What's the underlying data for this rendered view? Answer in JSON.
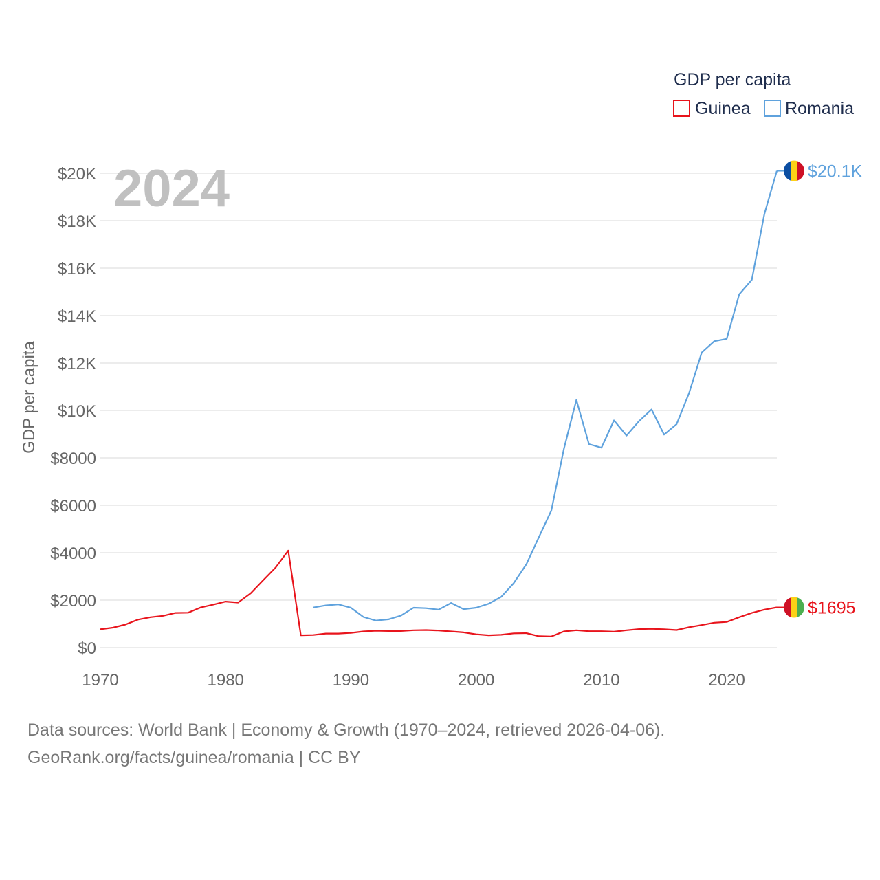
{
  "chart_data": {
    "type": "line",
    "title": "",
    "year_label": "2024",
    "ylabel": "GDP per capita",
    "xlabel": "",
    "xlim": [
      1970,
      2024
    ],
    "ylim": [
      0,
      20000
    ],
    "x_ticks": [
      1970,
      1980,
      1990,
      2000,
      2010,
      2020
    ],
    "x_tick_labels": [
      "1970",
      "1980",
      "1990",
      "2000",
      "2010",
      "2020"
    ],
    "y_ticks": [
      0,
      2000,
      4000,
      6000,
      8000,
      10000,
      12000,
      14000,
      16000,
      18000,
      20000
    ],
    "y_tick_labels": [
      "$0",
      "$2000",
      "$4000",
      "$6000",
      "$8000",
      "$10K",
      "$12K",
      "$14K",
      "$16K",
      "$18K",
      "$20K"
    ],
    "grid": true,
    "legend": {
      "title": "GDP per capita",
      "position": "top-right",
      "entries": [
        "Guinea",
        "Romania"
      ]
    },
    "series": [
      {
        "name": "Guinea",
        "color": "#e8141c",
        "end_label": "$1695",
        "flag_colors": [
          "#ce1126",
          "#fcd116",
          "#4caf50"
        ],
        "x": [
          1970,
          1971,
          1972,
          1973,
          1974,
          1975,
          1976,
          1977,
          1978,
          1979,
          1980,
          1981,
          1982,
          1983,
          1984,
          1985,
          1986,
          1987,
          1988,
          1989,
          1990,
          1991,
          1992,
          1993,
          1994,
          1995,
          1996,
          1997,
          1998,
          1999,
          2000,
          2001,
          2002,
          2003,
          2004,
          2005,
          2006,
          2007,
          2008,
          2009,
          2010,
          2011,
          2012,
          2013,
          2014,
          2015,
          2016,
          2017,
          2018,
          2019,
          2020,
          2021,
          2022,
          2023,
          2024
        ],
        "values": [
          770,
          840,
          970,
          1180,
          1280,
          1340,
          1460,
          1470,
          1690,
          1810,
          1940,
          1900,
          2290,
          2840,
          3380,
          4090,
          520,
          530,
          590,
          590,
          620,
          680,
          710,
          700,
          700,
          730,
          740,
          720,
          680,
          640,
          560,
          520,
          540,
          600,
          610,
          480,
          470,
          680,
          730,
          690,
          690,
          670,
          730,
          780,
          790,
          770,
          740,
          860,
          950,
          1050,
          1080,
          1280,
          1460,
          1600,
          1695
        ]
      },
      {
        "name": "Romania",
        "color": "#5fa2dd",
        "end_label": "$20.1K",
        "flag_colors": [
          "#0b4ea2",
          "#fcd116",
          "#ce1126"
        ],
        "x": [
          1987,
          1988,
          1989,
          1990,
          1991,
          1992,
          1993,
          1994,
          1995,
          1996,
          1997,
          1998,
          1999,
          2000,
          2001,
          2002,
          2003,
          2004,
          2005,
          2006,
          2007,
          2008,
          2009,
          2010,
          2011,
          2012,
          2013,
          2014,
          2015,
          2016,
          2017,
          2018,
          2019,
          2020,
          2021,
          2022,
          2023,
          2024
        ],
        "values": [
          1690,
          1780,
          1820,
          1680,
          1290,
          1140,
          1190,
          1350,
          1680,
          1660,
          1600,
          1880,
          1620,
          1680,
          1850,
          2140,
          2720,
          3510,
          4650,
          5780,
          8370,
          10440,
          8580,
          8430,
          9580,
          8940,
          9550,
          10040,
          8980,
          9420,
          10740,
          12440,
          12920,
          13020,
          14900,
          15510,
          18270,
          20100
        ]
      }
    ]
  },
  "source": {
    "line1": "Data sources: World Bank | Economy & Growth (1970–2024, retrieved 2026-04-06).",
    "line2": "GeoRank.org/facts/guinea/romania | CC BY"
  }
}
